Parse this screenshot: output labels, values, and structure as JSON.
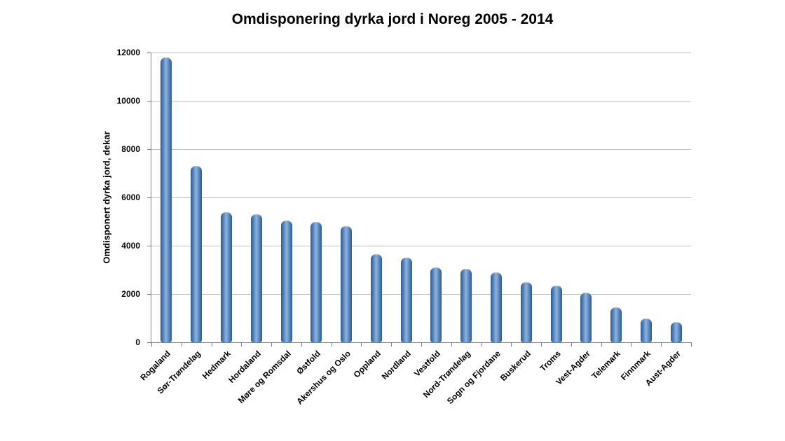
{
  "chart_data": {
    "type": "bar",
    "title": "Omdisponering dyrka jord i Noreg 2005 - 2014",
    "xlabel": "",
    "ylabel": "Omdisponert dyrka jord, dekar",
    "categories": [
      "Rogaland",
      "Sør-Trøndelag",
      "Hedmark",
      "Hordaland",
      "Møre og Romsdal",
      "Østfold",
      "Akershus og Oslo",
      "Oppland",
      "Nordland",
      "Vestfold",
      "Nord-Trøndelag",
      "Sogn og Fjordane",
      "Buskerud",
      "Troms",
      "Vest-Agder",
      "Telemark",
      "Finnmark",
      "Aust-Agder"
    ],
    "values": [
      11800,
      7300,
      5400,
      5300,
      5050,
      5000,
      4800,
      3650,
      3500,
      3100,
      3050,
      2900,
      2500,
      2350,
      2050,
      1450,
      1000,
      850
    ],
    "ylim": [
      0,
      12000
    ],
    "yticks": [
      0,
      2000,
      4000,
      6000,
      8000,
      10000,
      12000
    ],
    "grid": "horizontal",
    "legend": "none",
    "bar_color": "#4F81BD",
    "gridline_color": "#BFBFBF",
    "axis_color": "#808080"
  }
}
